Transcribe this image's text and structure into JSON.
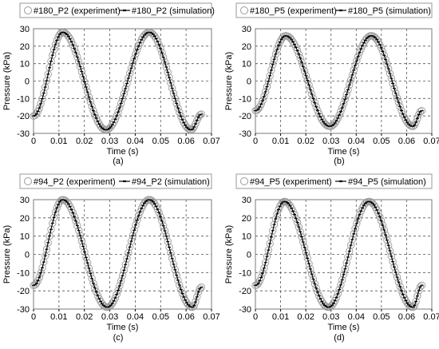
{
  "chart_data": [
    {
      "type": "scatter",
      "panel": "(a)",
      "xlabel": "Time (s)",
      "ylabel": "Pressure (kPa)",
      "xlim": [
        0,
        0.07
      ],
      "ylim": [
        -30,
        30
      ],
      "xticks": [
        0,
        0.01,
        0.02,
        0.03,
        0.04,
        0.05,
        0.06,
        0.07
      ],
      "yticks": [
        -30,
        -20,
        -10,
        0,
        10,
        20,
        30
      ],
      "grid": true,
      "legend_position": "top",
      "t_end": 0.066,
      "series": [
        {
          "name": "#180_P2 (experiment)",
          "marker": "open-circle",
          "color": "#9a9a9a",
          "x": [
            0,
            0.0115,
            0.0285,
            0.0455,
            0.062,
            0.066
          ],
          "y": [
            -20,
            28,
            -28,
            28,
            -28,
            -19
          ]
        },
        {
          "name": "#180_P2 (simulation)",
          "marker": "line-dash",
          "color": "#000000",
          "x": [
            0,
            0.0115,
            0.0285,
            0.0455,
            0.062,
            0.066
          ],
          "y": [
            -20,
            28,
            -28,
            28,
            -28,
            -19
          ]
        }
      ]
    },
    {
      "type": "scatter",
      "panel": "(b)",
      "xlabel": "Time (s)",
      "ylabel": "Pressure (kPa)",
      "xlim": [
        0,
        0.07
      ],
      "ylim": [
        -30,
        30
      ],
      "xticks": [
        0,
        0.01,
        0.02,
        0.03,
        0.04,
        0.05,
        0.06,
        0.07
      ],
      "yticks": [
        -30,
        -20,
        -10,
        0,
        10,
        20,
        30
      ],
      "grid": true,
      "legend_position": "top",
      "t_end": 0.066,
      "series": [
        {
          "name": "#180_P5 (experiment)",
          "marker": "open-circle",
          "color": "#9a9a9a",
          "x": [
            0,
            0.012,
            0.0295,
            0.046,
            0.0625,
            0.066
          ],
          "y": [
            -17,
            26,
            -26,
            26,
            -26,
            -17
          ]
        },
        {
          "name": "#180_P5 (simulation)",
          "marker": "line-dash",
          "color": "#000000",
          "x": [
            0,
            0.012,
            0.0295,
            0.046,
            0.0625,
            0.066
          ],
          "y": [
            -17,
            26,
            -26,
            26,
            -26,
            -17
          ]
        }
      ]
    },
    {
      "type": "scatter",
      "panel": "(c)",
      "xlabel": "Time (s)",
      "ylabel": "Pressure (kPa)",
      "xlim": [
        0,
        0.07
      ],
      "ylim": [
        -30,
        30
      ],
      "xticks": [
        0,
        0.01,
        0.02,
        0.03,
        0.04,
        0.05,
        0.06,
        0.07
      ],
      "yticks": [
        -30,
        -20,
        -10,
        0,
        10,
        20,
        30
      ],
      "grid": true,
      "legend_position": "top",
      "t_end": 0.066,
      "series": [
        {
          "name": "#94_P2 (experiment)",
          "marker": "open-circle",
          "color": "#9a9a9a",
          "x": [
            0,
            0.0115,
            0.029,
            0.0455,
            0.0625,
            0.066
          ],
          "y": [
            -17,
            30,
            -29,
            30,
            -29,
            -18
          ]
        },
        {
          "name": "#94_P2 (simulation)",
          "marker": "line-dash",
          "color": "#000000",
          "x": [
            0,
            0.0115,
            0.029,
            0.0455,
            0.0625,
            0.066
          ],
          "y": [
            -17,
            30,
            -29,
            30,
            -29,
            -18
          ]
        }
      ]
    },
    {
      "type": "scatter",
      "panel": "(d)",
      "xlabel": "Time (s)",
      "ylabel": "Pressure (kPa)",
      "xlim": [
        0,
        0.07
      ],
      "ylim": [
        -30,
        30
      ],
      "xticks": [
        0,
        0.01,
        0.02,
        0.03,
        0.04,
        0.05,
        0.06,
        0.07
      ],
      "yticks": [
        -30,
        -20,
        -10,
        0,
        10,
        20,
        30
      ],
      "grid": true,
      "legend_position": "top",
      "t_end": 0.066,
      "series": [
        {
          "name": "#94_P5 (experiment)",
          "marker": "open-circle",
          "color": "#9a9a9a",
          "x": [
            0,
            0.0115,
            0.029,
            0.045,
            0.0625,
            0.066
          ],
          "y": [
            -17,
            29,
            -29,
            29,
            -29,
            -17
          ]
        },
        {
          "name": "#94_P5 (simulation)",
          "marker": "line-dash",
          "color": "#000000",
          "x": [
            0,
            0.0115,
            0.029,
            0.045,
            0.0625,
            0.066
          ],
          "y": [
            -17,
            29,
            -29,
            29,
            -29,
            -17
          ]
        }
      ]
    }
  ]
}
